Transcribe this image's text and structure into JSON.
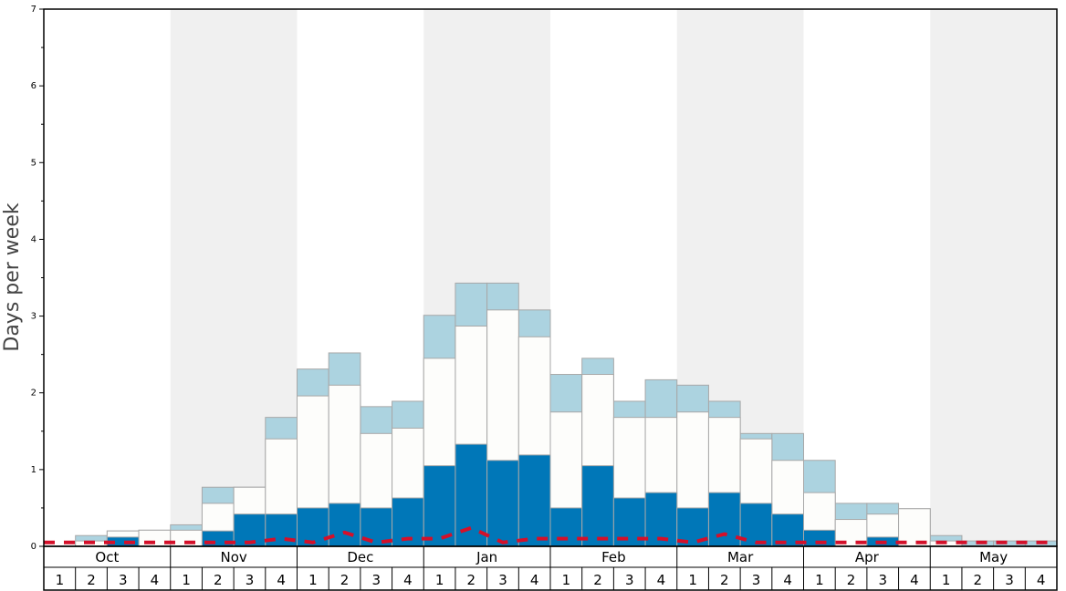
{
  "chart_data": {
    "type": "bar",
    "title": "",
    "ylabel": "Days per week",
    "xlabel": "",
    "ylim": [
      0,
      7
    ],
    "y_ticks": [
      "0",
      "1",
      "2",
      "3",
      "4",
      "5",
      "6",
      "7"
    ],
    "grid": false,
    "months": [
      "Oct",
      "Nov",
      "Dec",
      "Jan",
      "Feb",
      "Mar",
      "Apr",
      "May"
    ],
    "week_labels": [
      "1",
      "2",
      "3",
      "4"
    ],
    "shaded_months": [
      "Nov",
      "Jan",
      "Mar",
      "May"
    ],
    "colors": {
      "dark": "#0077b8",
      "middle": "#fdfdfb",
      "light": "#acd3e0",
      "dashed_line": "#d4102a",
      "shade": "#f0f0f0",
      "bar_stroke": "#a8a8a8"
    },
    "series": [
      {
        "values": [
          0.0,
          0.0,
          0.12,
          0.0,
          0.0,
          0.2,
          0.42,
          0.42,
          0.5,
          0.56,
          0.5,
          0.63,
          1.05,
          1.33,
          1.12,
          1.19,
          0.5,
          1.05,
          0.63,
          0.7,
          0.5,
          0.7,
          0.56,
          0.42,
          0.21,
          0.0,
          0.12,
          0.0,
          0.0,
          0.0,
          0.0,
          0.0
        ]
      },
      {
        "values": [
          0.0,
          0.07,
          0.2,
          0.21,
          0.21,
          0.56,
          0.77,
          1.4,
          1.96,
          2.1,
          1.47,
          1.54,
          2.45,
          2.87,
          3.08,
          2.73,
          1.75,
          2.24,
          1.68,
          1.68,
          1.75,
          1.68,
          1.4,
          1.12,
          0.7,
          0.35,
          0.42,
          0.49,
          0.07,
          0.0,
          0.0,
          0.0
        ]
      },
      {
        "values": [
          0.0,
          0.14,
          0.2,
          0.21,
          0.28,
          0.77,
          0.77,
          1.68,
          2.31,
          2.52,
          1.82,
          1.89,
          3.01,
          3.43,
          3.43,
          3.08,
          2.24,
          2.45,
          1.89,
          2.17,
          2.1,
          1.89,
          1.47,
          1.47,
          1.12,
          0.56,
          0.56,
          0.49,
          0.14,
          0.07,
          0.07,
          0.07
        ]
      },
      {
        "values": [
          0.05,
          0.05,
          0.05,
          0.05,
          0.05,
          0.05,
          0.05,
          0.1,
          0.05,
          0.18,
          0.05,
          0.1,
          0.1,
          0.24,
          0.05,
          0.1,
          0.1,
          0.1,
          0.1,
          0.1,
          0.05,
          0.16,
          0.05,
          0.05,
          0.05,
          0.05,
          0.05,
          0.05,
          0.05,
          0.05,
          0.05,
          0.05
        ]
      }
    ]
  }
}
